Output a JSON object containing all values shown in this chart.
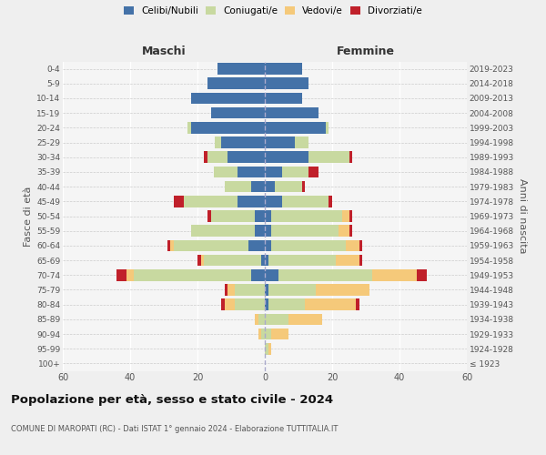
{
  "age_groups": [
    "100+",
    "95-99",
    "90-94",
    "85-89",
    "80-84",
    "75-79",
    "70-74",
    "65-69",
    "60-64",
    "55-59",
    "50-54",
    "45-49",
    "40-44",
    "35-39",
    "30-34",
    "25-29",
    "20-24",
    "15-19",
    "10-14",
    "5-9",
    "0-4"
  ],
  "birth_years": [
    "≤ 1923",
    "1924-1928",
    "1929-1933",
    "1934-1938",
    "1939-1943",
    "1944-1948",
    "1949-1953",
    "1954-1958",
    "1959-1963",
    "1964-1968",
    "1969-1973",
    "1974-1978",
    "1979-1983",
    "1984-1988",
    "1989-1993",
    "1994-1998",
    "1999-2003",
    "2004-2008",
    "2009-2013",
    "2014-2018",
    "2019-2023"
  ],
  "males": {
    "celibi": [
      0,
      0,
      0,
      0,
      0,
      0,
      4,
      1,
      5,
      3,
      3,
      8,
      4,
      8,
      11,
      13,
      22,
      16,
      22,
      17,
      14
    ],
    "coniugati": [
      0,
      0,
      1,
      2,
      9,
      9,
      35,
      17,
      22,
      19,
      13,
      16,
      8,
      7,
      6,
      2,
      1,
      0,
      0,
      0,
      0
    ],
    "vedovi": [
      0,
      0,
      1,
      1,
      3,
      2,
      2,
      1,
      1,
      0,
      0,
      0,
      0,
      0,
      0,
      0,
      0,
      0,
      0,
      0,
      0
    ],
    "divorziati": [
      0,
      0,
      0,
      0,
      1,
      1,
      3,
      1,
      1,
      0,
      1,
      3,
      0,
      0,
      1,
      0,
      0,
      0,
      0,
      0,
      0
    ]
  },
  "females": {
    "nubili": [
      0,
      0,
      0,
      0,
      1,
      1,
      4,
      1,
      2,
      2,
      2,
      5,
      3,
      5,
      13,
      9,
      18,
      16,
      11,
      13,
      11
    ],
    "coniugate": [
      0,
      1,
      2,
      7,
      11,
      14,
      28,
      20,
      22,
      20,
      21,
      14,
      8,
      8,
      12,
      4,
      1,
      0,
      0,
      0,
      0
    ],
    "vedove": [
      0,
      1,
      5,
      10,
      15,
      16,
      13,
      7,
      4,
      3,
      2,
      0,
      0,
      0,
      0,
      0,
      0,
      0,
      0,
      0,
      0
    ],
    "divorziate": [
      0,
      0,
      0,
      0,
      1,
      0,
      3,
      1,
      1,
      1,
      1,
      1,
      1,
      3,
      1,
      0,
      0,
      0,
      0,
      0,
      0
    ]
  },
  "color_celibi": "#4472A8",
  "color_coniugati": "#C8D9A0",
  "color_vedovi": "#F5C97A",
  "color_divorziati": "#C0202A",
  "title": "Popolazione per età, sesso e stato civile - 2024",
  "subtitle": "COMUNE DI MAROPATI (RC) - Dati ISTAT 1° gennaio 2024 - Elaborazione TUTTITALIA.IT",
  "xlabel_left": "Maschi",
  "xlabel_right": "Femmine",
  "ylabel_left": "Fasce di età",
  "ylabel_right": "Anni di nascita",
  "xlim": 60,
  "bg_color": "#efefef",
  "plot_bg": "#f5f5f5"
}
